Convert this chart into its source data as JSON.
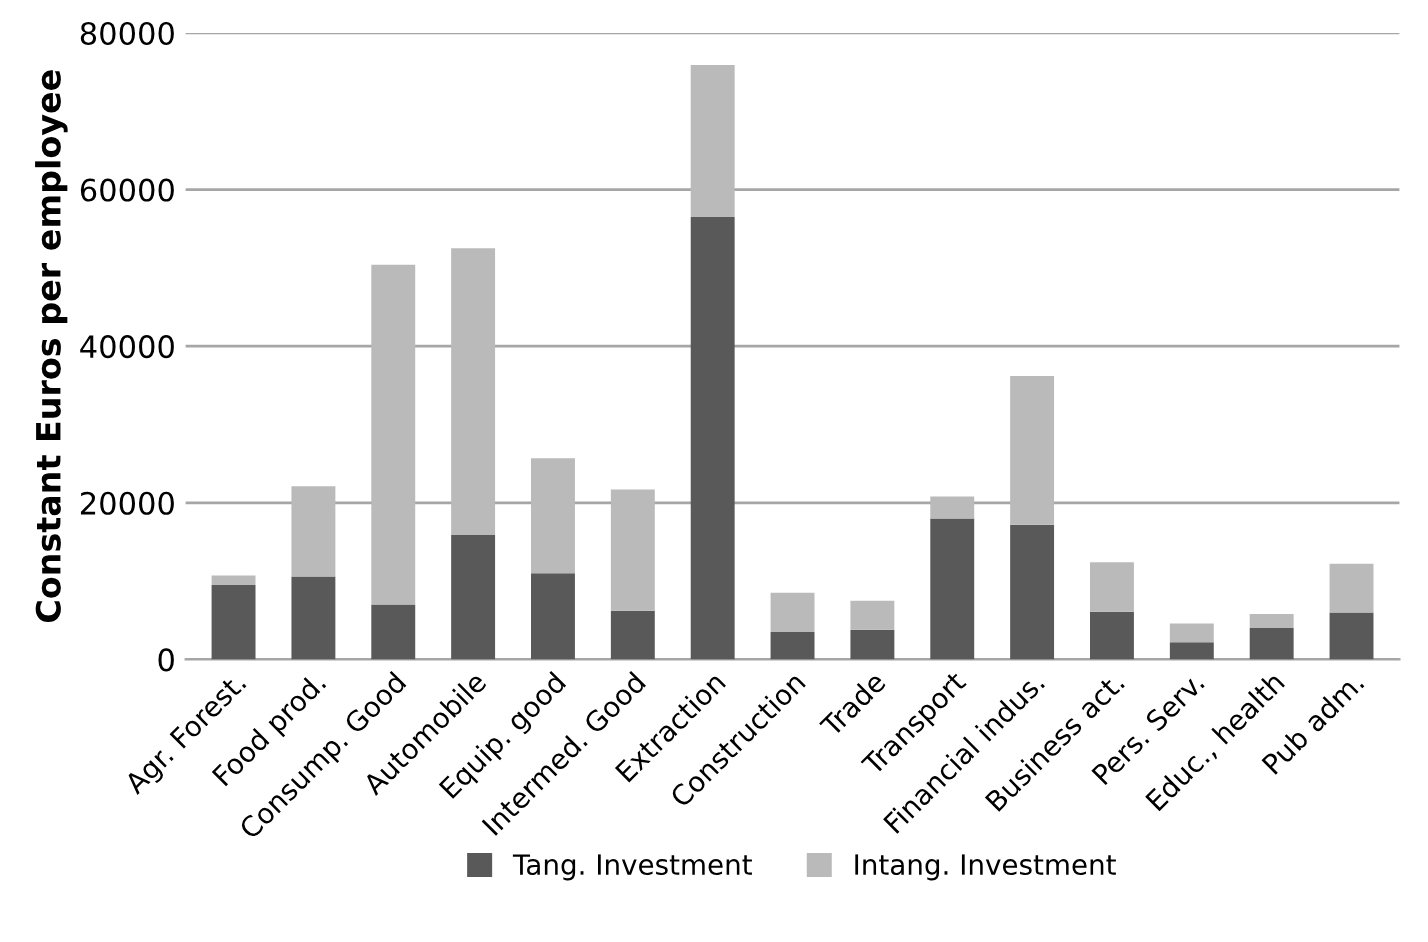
{
  "chart_data": {
    "type": "bar",
    "stacked": true,
    "ylabel": "Constant Euros per employee",
    "categories": [
      "Agr. Forest.",
      "Food prod.",
      "Consump. Good",
      "Automobile",
      "Equip. good",
      "Intermed. Good",
      "Extraction",
      "Construction",
      "Trade",
      "Transport",
      "Financial indus.",
      "Business act.",
      "Pers. Serv.",
      "Educ., health",
      "Pub adm."
    ],
    "series": [
      {
        "name": "Tang. Investment",
        "color": "#595959",
        "values": [
          9500,
          10600,
          7000,
          15900,
          11000,
          6200,
          56500,
          3500,
          3800,
          18000,
          17200,
          6100,
          2200,
          4000,
          6000
        ]
      },
      {
        "name": "Intang. Investment",
        "color": "#bababa",
        "values": [
          1200,
          11500,
          43400,
          36600,
          14700,
          15500,
          19400,
          5000,
          3700,
          2800,
          19000,
          6300,
          2400,
          1800,
          6200
        ]
      }
    ],
    "ylim": [
      0,
      80000
    ],
    "yticks": [
      0,
      20000,
      40000,
      60000,
      80000
    ],
    "grid": "y",
    "legend": "bottom"
  }
}
